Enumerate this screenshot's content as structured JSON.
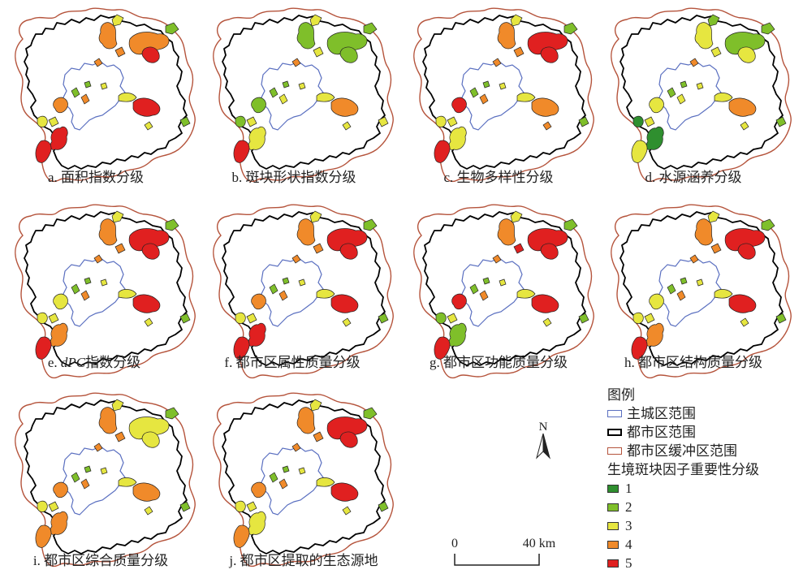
{
  "panels": [
    {
      "id": "a",
      "caption": "a. 面积指数分级",
      "pre": "",
      "italic": "",
      "post": "",
      "classes": {
        "p1": 5,
        "p2": 4,
        "p3": 3,
        "p4": 4,
        "p5": 5,
        "p6": 2,
        "p7": 4,
        "p8": 5,
        "p9": 3,
        "p10": 4,
        "p11": 3,
        "p12": 5,
        "p13": 2,
        "p14": 3,
        "p15": 4,
        "p16": 3,
        "p17": 2,
        "p18": 2,
        "p19": 3,
        "p20": 4
      }
    },
    {
      "id": "b",
      "caption": "b. 斑块形状指数分级",
      "pre": "",
      "italic": "",
      "post": "",
      "classes": {
        "p1": 3,
        "p2": 2,
        "p3": 3,
        "p4": 2,
        "p5": 2,
        "p6": 2,
        "p7": 3,
        "p8": 4,
        "p9": 3,
        "p10": 2,
        "p11": 3,
        "p12": 5,
        "p13": 2,
        "p14": 3,
        "p15": 4,
        "p16": 3,
        "p17": 3,
        "p18": 2,
        "p19": 2,
        "p20": 3
      }
    },
    {
      "id": "c",
      "caption": "c. 生物多样性分级",
      "pre": "",
      "italic": "",
      "post": "",
      "classes": {
        "p1": 3,
        "p2": 4,
        "p3": 3,
        "p4": 5,
        "p5": 5,
        "p6": 2,
        "p7": 4,
        "p8": 4,
        "p9": 3,
        "p10": 5,
        "p11": 3,
        "p12": 5,
        "p13": 2,
        "p14": 3,
        "p15": 4,
        "p16": 4,
        "p17": 2,
        "p18": 2,
        "p19": 3,
        "p20": 4
      }
    },
    {
      "id": "d",
      "caption": "d. 水源涵养分级",
      "pre": "",
      "italic": "",
      "post": "",
      "classes": {
        "p1": 1,
        "p2": 3,
        "p3": 2,
        "p4": 2,
        "p5": 3,
        "p6": 2,
        "p7": 3,
        "p8": 4,
        "p9": 3,
        "p10": 3,
        "p11": 3,
        "p12": 3,
        "p13": 2,
        "p14": 3,
        "p15": 4,
        "p16": 3,
        "p17": 2,
        "p18": 2,
        "p19": 1,
        "p20": 3
      }
    },
    {
      "id": "e",
      "caption": "e. dPC指数分级",
      "pre": "e. ",
      "italic": "dPC",
      "post": "指数分级",
      "classes": {
        "p1": 4,
        "p2": 4,
        "p3": 3,
        "p4": 5,
        "p5": 5,
        "p6": 2,
        "p7": 4,
        "p8": 5,
        "p9": 3,
        "p10": 3,
        "p11": 3,
        "p12": 5,
        "p13": 2,
        "p14": 3,
        "p15": 4,
        "p16": 3,
        "p17": 2,
        "p18": 2,
        "p19": 3,
        "p20": 4
      }
    },
    {
      "id": "f",
      "caption": "f. 都市区属性质量分级",
      "pre": "",
      "italic": "",
      "post": "",
      "classes": {
        "p1": 5,
        "p2": 4,
        "p3": 3,
        "p4": 5,
        "p5": 5,
        "p6": 2,
        "p7": 4,
        "p8": 5,
        "p9": 3,
        "p10": 4,
        "p11": 3,
        "p12": 5,
        "p13": 2,
        "p14": 3,
        "p15": 4,
        "p16": 3,
        "p17": 2,
        "p18": 2,
        "p19": 3,
        "p20": 4
      }
    },
    {
      "id": "g",
      "caption": "g. 都市区功能质量分级",
      "pre": "",
      "italic": "",
      "post": "",
      "classes": {
        "p1": 2,
        "p2": 4,
        "p3": 3,
        "p4": 5,
        "p5": 5,
        "p6": 2,
        "p7": 5,
        "p8": 5,
        "p9": 3,
        "p10": 5,
        "p11": 3,
        "p12": 5,
        "p13": 2,
        "p14": 3,
        "p15": 4,
        "p16": 3,
        "p17": 2,
        "p18": 2,
        "p19": 2,
        "p20": 4
      }
    },
    {
      "id": "h",
      "caption": "h. 都市区结构质量分级",
      "pre": "",
      "italic": "",
      "post": "",
      "classes": {
        "p1": 4,
        "p2": 4,
        "p3": 3,
        "p4": 5,
        "p5": 5,
        "p6": 2,
        "p7": 4,
        "p8": 5,
        "p9": 3,
        "p10": 3,
        "p11": 3,
        "p12": 5,
        "p13": 2,
        "p14": 3,
        "p15": 4,
        "p16": 3,
        "p17": 2,
        "p18": 2,
        "p19": 3,
        "p20": 4
      }
    },
    {
      "id": "i",
      "caption": "i. 都市区综合质量分级",
      "pre": "",
      "italic": "",
      "post": "",
      "classes": {
        "p1": 4,
        "p2": 4,
        "p3": 3,
        "p4": 3,
        "p5": 3,
        "p6": 2,
        "p7": 4,
        "p8": 4,
        "p9": 3,
        "p10": 4,
        "p11": 3,
        "p12": 4,
        "p13": 2,
        "p14": 3,
        "p15": 4,
        "p16": 3,
        "p17": 2,
        "p18": 2,
        "p19": 3,
        "p20": 4
      }
    },
    {
      "id": "j",
      "caption": "j. 都市区提取的生态源地",
      "pre": "",
      "italic": "",
      "post": "",
      "classes": {
        "p1": 3,
        "p2": 4,
        "p3": 3,
        "p4": 5,
        "p5": 5,
        "p6": 2,
        "p7": 4,
        "p8": 5,
        "p9": 3,
        "p10": 4,
        "p11": 3,
        "p12": 4,
        "p13": 2,
        "p14": 3,
        "p15": 4,
        "p16": 3,
        "p17": 2,
        "p18": 2,
        "p19": 3,
        "p20": 4
      }
    }
  ],
  "legend": {
    "title": "图例",
    "main_city": "主城区范围",
    "metro": "都市区范围",
    "buffer": "都市区缓冲区范围",
    "factor_title": "生境斑块因子重要性分级",
    "classes": [
      {
        "label": "1",
        "color": "#2f8f2f"
      },
      {
        "label": "2",
        "color": "#7fbf2a"
      },
      {
        "label": "3",
        "color": "#e6e640"
      },
      {
        "label": "4",
        "color": "#f08a2a"
      },
      {
        "label": "5",
        "color": "#e02020"
      }
    ]
  },
  "north_arrow": {
    "label": "N"
  },
  "scale_bar": {
    "start": "0",
    "end": "40 km"
  },
  "colors": {
    "main_city": "#5a6fc0",
    "metro": "#000000",
    "buffer": "#b5543c"
  }
}
